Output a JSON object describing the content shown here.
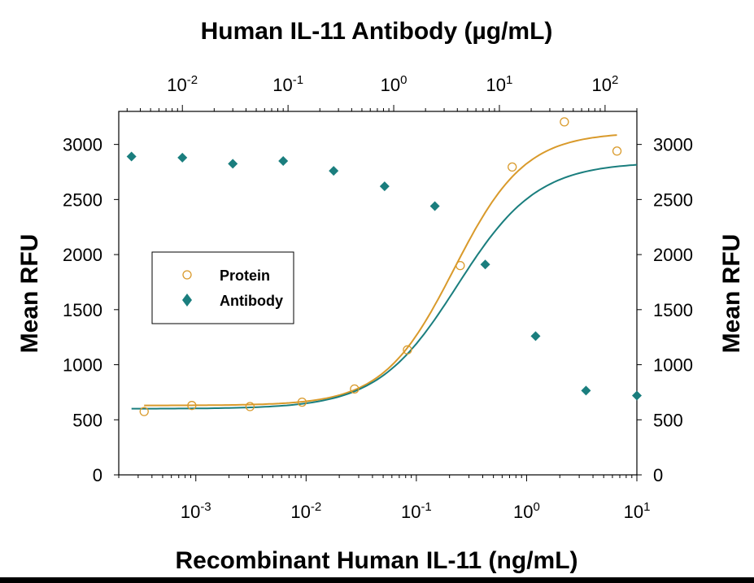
{
  "chart_data": {
    "type": "scatter",
    "title": "Human IL-11 Antibody (µg/mL)",
    "xlabel": "Recombinant Human IL-11 (ng/mL)",
    "ylabel_left": "Mean RFU",
    "ylabel_right": "Mean RFU",
    "x_scale": "log",
    "xlim": [
      0.0002,
      10
    ],
    "ylim": [
      0,
      3300
    ],
    "x2_scale": "log",
    "x2lim": [
      0.0025,
      200
    ],
    "x2_tick_labels": [
      {
        "base": "10",
        "exp": "-2",
        "value": 0.01
      },
      {
        "base": "10",
        "exp": "-1",
        "value": 0.1
      },
      {
        "base": "10",
        "exp": "0",
        "value": 1
      },
      {
        "base": "10",
        "exp": "1",
        "value": 10
      },
      {
        "base": "10",
        "exp": "2",
        "value": 100
      }
    ],
    "x_tick_labels": [
      {
        "base": "10",
        "exp": "-3",
        "value": 0.001
      },
      {
        "base": "10",
        "exp": "-2",
        "value": 0.01
      },
      {
        "base": "10",
        "exp": "-1",
        "value": 0.1
      },
      {
        "base": "10",
        "exp": "0",
        "value": 1
      },
      {
        "base": "10",
        "exp": "1",
        "value": 10
      }
    ],
    "y_ticks": [
      0,
      500,
      1000,
      1500,
      2000,
      2500,
      3000
    ],
    "y_tick_labels": [
      "0",
      "500",
      "1000",
      "1500",
      "2000",
      "2500",
      "3000"
    ],
    "legend_position": "left-middle",
    "grid": false,
    "series": [
      {
        "name": "Protein",
        "axis": "bottom",
        "marker": "open-circle",
        "color": "#D99A2B",
        "x": [
          0.00034,
          0.00092,
          0.0031,
          0.0092,
          0.0275,
          0.083,
          0.25,
          0.74,
          2.2,
          6.6
        ],
        "y": [
          575,
          630,
          620,
          660,
          780,
          1135,
          1900,
          2795,
          3205,
          2940
        ],
        "fit": {
          "model": "4PL",
          "bottom": 630,
          "top": 3110,
          "ec50": 0.22,
          "hill": 1.35
        }
      },
      {
        "name": "Antibody",
        "axis": "top",
        "marker": "filled-diamond",
        "color": "#1A7E7E",
        "x": [
          0.0033,
          0.01,
          0.03,
          0.09,
          0.27,
          0.82,
          2.45,
          7.35,
          22,
          66,
          200
        ],
        "y": [
          2890,
          2880,
          2825,
          2850,
          2760,
          2620,
          2440,
          1910,
          1260,
          765,
          720
        ],
        "fit": {
          "model": "4PL",
          "bottom": 600,
          "top": 2840,
          "ec50": 4.0,
          "hill": 1.15
        }
      }
    ]
  }
}
